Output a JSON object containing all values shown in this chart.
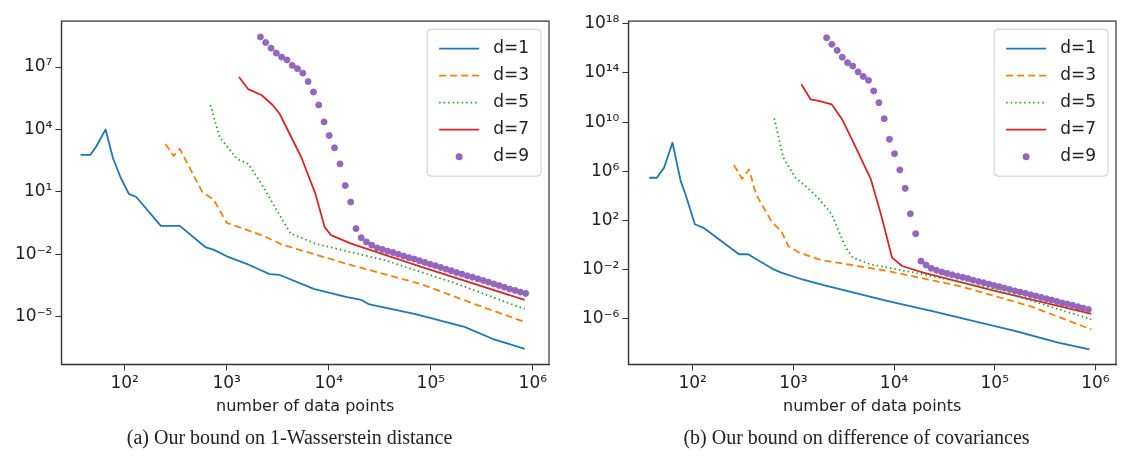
{
  "chart_data": [
    {
      "type": "line",
      "title": "(a) Our bound on 1-Wasserstein distance",
      "xlabel": "number of data points",
      "log": "xy",
      "grid": false,
      "legend": "top right",
      "xlim": [
        24,
        1440000
      ],
      "ylim": [
        5e-08,
        1600000000.0
      ],
      "xticks": [
        {
          "value": 100,
          "label": "10²"
        },
        {
          "value": 1000,
          "label": "10³"
        },
        {
          "value": 10000,
          "label": "10⁴"
        },
        {
          "value": 100000,
          "label": "10⁵"
        },
        {
          "value": 1000000,
          "label": "10⁶"
        }
      ],
      "yticks": [
        {
          "value": 1e-05,
          "label": "10⁻⁵"
        },
        {
          "value": 0.01,
          "label": "10⁻²"
        },
        {
          "value": 10,
          "label": "10¹"
        },
        {
          "value": 10000,
          "label": "10⁴"
        },
        {
          "value": 10000000.0,
          "label": "10⁷"
        }
      ],
      "series": [
        {
          "name": "d=1",
          "color": "#1f77b4",
          "line_style": "solid",
          "marker": "none",
          "x": [
            37,
            46,
            53,
            65,
            77,
            91,
            110,
            130,
            226,
            347,
            617,
            750,
            1000,
            1620,
            2630,
            3310,
            7240,
            15100,
            20900,
            24500,
            70800,
            214000,
            407000,
            832000
          ],
          "values": [
            590,
            590,
            1600,
            10000,
            400,
            50,
            7.9,
            5.6,
            0.23,
            0.23,
            0.022,
            0.016,
            0.0079,
            0.0032,
            0.0011,
            0.001,
            0.00021,
            8.7e-05,
            6.3e-05,
            4e-05,
            1.3e-05,
            3.2e-06,
            8.3e-07,
            2.8e-07
          ]
        },
        {
          "name": "d=3",
          "color": "#ff7f0e",
          "line_style": "dashed",
          "marker": "none",
          "x": [
            251,
            302,
            347,
            575,
            750,
            1000,
            2190,
            3550,
            15100,
            79400,
            269000,
            832000
          ],
          "values": [
            2000,
            525,
            1150,
            10,
            4.0,
            0.32,
            0.083,
            0.028,
            0.0034,
            0.00037,
            4e-05,
            5.5e-06
          ]
        },
        {
          "name": "d=5",
          "color": "#2ca02c",
          "line_style": "dotted",
          "marker": "none",
          "x": [
            692,
            851,
            1260,
            1620,
            2190,
            3090,
            4220,
            7410,
            36300,
            182000,
            832000
          ],
          "values": [
            150000,
            4300,
            380,
            220,
            24,
            1.3,
            0.1,
            0.032,
            0.005,
            0.00037,
            2.3e-05
          ]
        },
        {
          "name": "d=7",
          "color": "#d62728",
          "line_style": "solid",
          "marker": "none",
          "x": [
            1320,
            1620,
            2190,
            2820,
            3310,
            5370,
            7410,
            9120,
            10500,
            16600,
            79400,
            832000
          ],
          "values": [
            3300000,
            870000,
            450000,
            150000,
            55000,
            470,
            7.9,
            0.2,
            0.083,
            0.032,
            0.0025,
            6.3e-05
          ]
        },
        {
          "name": "d=9",
          "color": "#9467bd",
          "type": "scatter",
          "marker": "circle",
          "x": [
            2140,
            2410,
            2720,
            3060,
            3450,
            3890,
            4390,
            4940,
            5570,
            6280,
            7080,
            7980,
            9000,
            10100,
            11400,
            12900,
            14500,
            16400,
            18500,
            20800,
            23400,
            26400,
            29800,
            33600,
            37800,
            42700,
            48100,
            54200,
            61100,
            68900,
            77600,
            87500,
            98600,
            111000,
            125000,
            141000,
            159000,
            179000,
            202000,
            228000,
            257000,
            290000,
            327000,
            368000,
            415000,
            468000,
            527000,
            594000,
            670000,
            755000,
            851000
          ],
          "values": [
            280000000.0,
            150000000.0,
            81000000.0,
            47000000.0,
            30000000.0,
            22000000.0,
            12000000.0,
            8300000.0,
            5100000.0,
            2000000.0,
            630000,
            150000,
            23000,
            5100,
            1300,
            220,
            20,
            3.2,
            0.17,
            0.062,
            0.039,
            0.027,
            0.02,
            0.017,
            0.014,
            0.012,
            0.0098,
            0.0081,
            0.0068,
            0.0058,
            0.0048,
            0.004,
            0.0033,
            0.0028,
            0.0023,
            0.0019,
            0.0016,
            0.0013,
            0.0011,
            0.00091,
            0.00078,
            0.00065,
            0.00054,
            0.00045,
            0.00037,
            0.00031,
            0.00026,
            0.00021,
            0.00018,
            0.00015,
            0.00013
          ]
        }
      ]
    },
    {
      "type": "line",
      "title": "(b) Our bound on difference of covariances",
      "xlabel": "number of data points",
      "log": "xy",
      "grid": false,
      "legend": "top right",
      "xlim": [
        23,
        1600000
      ],
      "ylim": [
        2e-10,
        1.6e+18
      ],
      "xticks": [
        {
          "value": 100,
          "label": "10²"
        },
        {
          "value": 1000,
          "label": "10³"
        },
        {
          "value": 10000,
          "label": "10⁴"
        },
        {
          "value": 100000,
          "label": "10⁵"
        },
        {
          "value": 1000000,
          "label": "10⁶"
        }
      ],
      "yticks": [
        {
          "value": 1e-06,
          "label": "10⁻⁶"
        },
        {
          "value": 0.01,
          "label": "10⁻²"
        },
        {
          "value": 100,
          "label": "10²"
        },
        {
          "value": 1000000,
          "label": "10⁶"
        },
        {
          "value": 10000000000.0,
          "label": "10¹⁰"
        },
        {
          "value": 100000000000000.0,
          "label": "10¹⁴"
        },
        {
          "value": 1e+18,
          "label": "10¹⁸"
        }
      ],
      "series": [
        {
          "name": "d=1",
          "color": "#1f77b4",
          "line_style": "solid",
          "marker": "none",
          "x": [
            37,
            44,
            52,
            63,
            76,
            85,
            105,
            129,
            288,
            355,
            631,
            759,
            1230,
            2000,
            8710,
            20000,
            23400,
            52500,
            162000,
            427000,
            871000
          ],
          "values": [
            300000,
            300000,
            2000000,
            210000000.0,
            160000,
            13000,
            50,
            25,
            0.18,
            0.18,
            0.011,
            0.0058,
            0.0016,
            0.00056,
            2.8e-05,
            5.9e-06,
            4.4e-06,
            9.1e-07,
            1e-07,
            1.2e-08,
            3.3e-09
          ]
        },
        {
          "name": "d=3",
          "color": "#ff7f0e",
          "line_style": "dashed",
          "marker": "none",
          "x": [
            257,
            309,
            363,
            427,
            617,
            759,
            891,
            1150,
            1860,
            8710,
            44700,
            224000,
            912000
          ],
          "values": [
            3200000,
            250000,
            1400000,
            13000,
            66,
            14,
            0.83,
            0.24,
            0.063,
            0.0078,
            0.00047,
            1.1e-05,
            1.4e-07
          ]
        },
        {
          "name": "d=5",
          "color": "#2ca02c",
          "line_style": "dotted",
          "marker": "none",
          "x": [
            646,
            794,
            1050,
            1380,
            1780,
            2400,
            3310,
            3890,
            5890,
            19500,
            100000,
            912000
          ],
          "values": [
            20000000000.0,
            13000000.0,
            300000,
            47000,
            6300,
            320,
            0.62,
            0.095,
            0.027,
            0.0042,
            0.00025,
            9.1e-07
          ]
        },
        {
          "name": "d=7",
          "color": "#d62728",
          "line_style": "solid",
          "marker": "none",
          "x": [
            1200,
            1480,
            1740,
            2400,
            3090,
            3890,
            5890,
            7410,
            9550,
            12000,
            19500,
            100000,
            912000
          ],
          "values": [
            12000000000000.0,
            710000000000.0,
            560000000000.0,
            280000000000.0,
            14000000000.0,
            290000000.0,
            220000,
            320,
            0.095,
            0.02,
            0.0058,
            0.00019,
            2.6e-06
          ]
        },
        {
          "name": "d=9",
          "color": "#9467bd",
          "type": "scatter",
          "marker": "circle",
          "x": [
            2140,
            2410,
            2720,
            3060,
            3450,
            3890,
            4390,
            4940,
            5570,
            6280,
            7080,
            7980,
            9000,
            10100,
            11400,
            12900,
            14500,
            16400,
            18500,
            20800,
            23400,
            26400,
            29800,
            33600,
            37800,
            42700,
            48100,
            54200,
            61100,
            68900,
            77600,
            87500,
            98600,
            111000,
            125000,
            141000,
            159000,
            179000,
            202000,
            228000,
            257000,
            290000,
            327000,
            368000,
            415000,
            468000,
            527000,
            594000,
            670000,
            755000,
            851000
          ],
          "values": [
            7.2e+16,
            2.1e+16,
            6800000000000000.0,
            1900000000000000.0,
            680000000000000.0,
            360000000000000.0,
            120000000000000.0,
            52000000000000.0,
            25000000000000.0,
            3400000000000.0,
            380000000000.0,
            19000000000.0,
            400000000.0,
            27000000.0,
            1300000.0,
            41000,
            350,
            8.5,
            0.05,
            0.024,
            0.013,
            0.0089,
            0.0065,
            0.005,
            0.0039,
            0.003,
            0.0024,
            0.0019,
            0.0014,
            0.0011,
            0.00087,
            0.00068,
            0.00052,
            0.00042,
            0.00032,
            0.00025,
            0.00019,
            0.00015,
            0.00012,
            9.1e-05,
            7.2e-05,
            5.6e-05,
            4.4e-05,
            3.4e-05,
            2.6e-05,
            2e-05,
            1.6e-05,
            1.3e-05,
            9.8e-06,
            7.6e-06,
            5.9e-06
          ]
        }
      ]
    }
  ]
}
